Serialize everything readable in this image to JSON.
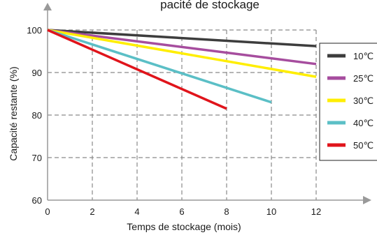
{
  "chart_data": {
    "type": "line",
    "title_partial": "pacité de stockage",
    "xlabel": "Temps de stockage (mois)",
    "ylabel": "Capacité restante (%)",
    "xlim": [
      0,
      12
    ],
    "ylim": [
      60,
      100
    ],
    "x_ticks": [
      "0",
      "2",
      "4",
      "6",
      "8",
      "10",
      "12"
    ],
    "y_ticks": [
      "60",
      "70",
      "80",
      "90",
      "100"
    ],
    "grid": true,
    "legend_position": "right",
    "series": [
      {
        "name": "10℃",
        "color": "#3d3d3d",
        "x": [
          0,
          12
        ],
        "y": [
          100,
          96.2
        ]
      },
      {
        "name": "25℃",
        "color": "#a64d9e",
        "x": [
          0,
          12
        ],
        "y": [
          100,
          92
        ]
      },
      {
        "name": "30℃",
        "color": "#ffee00",
        "x": [
          0,
          12
        ],
        "y": [
          100,
          89
        ]
      },
      {
        "name": "40℃",
        "color": "#5bbfc6",
        "x": [
          0,
          10
        ],
        "y": [
          100,
          83
        ]
      },
      {
        "name": "50℃",
        "color": "#e0141b",
        "x": [
          0,
          8
        ],
        "y": [
          100,
          81.5
        ]
      }
    ]
  }
}
